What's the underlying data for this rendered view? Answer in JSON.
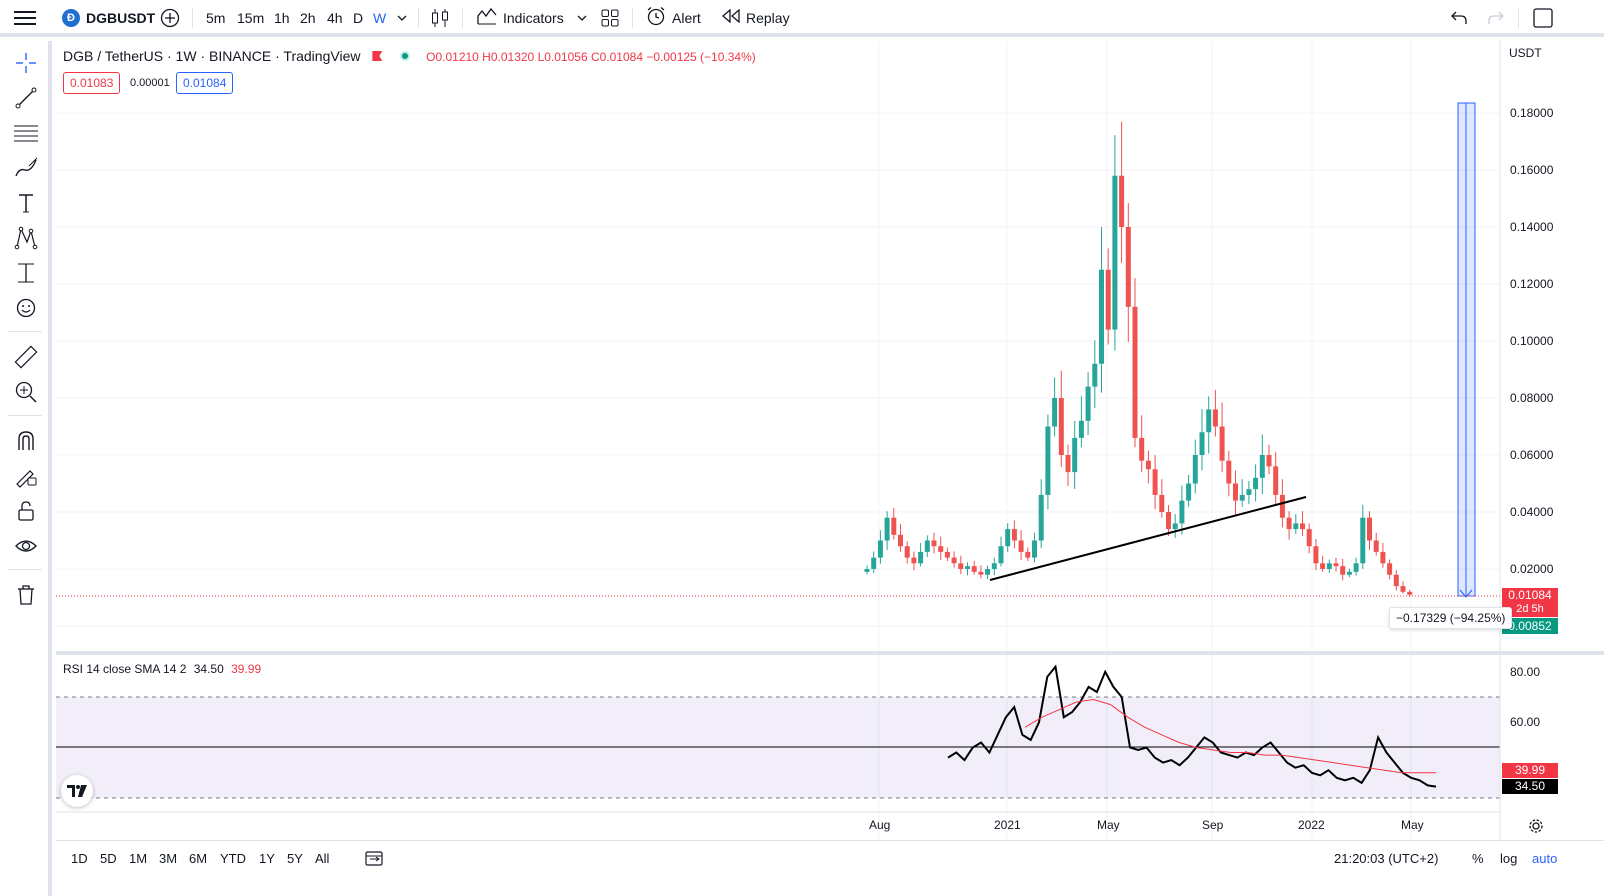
{
  "toolbar": {
    "symbol": "DGBUSDT",
    "timeframes": [
      "5m",
      "15m",
      "1h",
      "2h",
      "4h",
      "D",
      "W"
    ],
    "active_timeframe": "W",
    "indicators_label": "Indicators",
    "alert_label": "Alert",
    "replay_label": "Replay"
  },
  "legend": {
    "title": "DGB / TetherUS · 1W · BINANCE · TradingView",
    "ohlc": "O0.01210 H0.01320 L0.01056 C0.01084 −0.00125 (−10.34%)",
    "bid": "0.01083",
    "spread": "0.00001",
    "ask": "0.01084"
  },
  "currency": "USDT",
  "price_axis": [
    "0.18000",
    "0.16000",
    "0.14000",
    "0.12000",
    "0.10000",
    "0.08000",
    "0.06000",
    "0.04000",
    "0.02000"
  ],
  "price_tags": {
    "last": "0.01084",
    "countdown": "2d 5h",
    "low": "0.00852",
    "measure": "−0.17329 (−94.25%)"
  },
  "rsi": {
    "legend_name": "RSI 14 close SMA 14 2",
    "rsi_value": "34.50",
    "sma_value": "39.99",
    "axis": [
      "80.00",
      "60.00"
    ]
  },
  "time_axis": [
    "Aug",
    "2021",
    "May",
    "Sep",
    "2022",
    "May"
  ],
  "bottom": {
    "ranges": [
      "1D",
      "5D",
      "1M",
      "3M",
      "6M",
      "YTD",
      "1Y",
      "5Y",
      "All"
    ],
    "clock": "21:20:03 (UTC+2)",
    "percent": "%",
    "log": "log",
    "auto": "auto"
  },
  "colors": {
    "up": "#26a69a",
    "down": "#ef5350",
    "accent": "#2962ff",
    "rsi_band": "#7e57c2"
  },
  "chart_data": {
    "type": "candlestick",
    "timeframe": "1W",
    "ylim": [
      0.0,
      0.19
    ],
    "closes_approx": [
      0.02,
      0.024,
      0.03,
      0.038,
      0.032,
      0.028,
      0.024,
      0.022,
      0.026,
      0.03,
      0.028,
      0.026,
      0.024,
      0.022,
      0.02,
      0.021,
      0.019,
      0.018,
      0.02,
      0.022,
      0.028,
      0.034,
      0.03,
      0.026,
      0.024,
      0.03,
      0.046,
      0.07,
      0.08,
      0.06,
      0.054,
      0.066,
      0.072,
      0.084,
      0.092,
      0.125,
      0.104,
      0.158,
      0.14,
      0.112,
      0.066,
      0.058,
      0.055,
      0.046,
      0.04,
      0.034,
      0.036,
      0.044,
      0.05,
      0.06,
      0.068,
      0.076,
      0.07,
      0.058,
      0.05,
      0.044,
      0.046,
      0.048,
      0.052,
      0.06,
      0.056,
      0.046,
      0.038,
      0.034,
      0.036,
      0.034,
      0.028,
      0.022,
      0.02,
      0.022,
      0.021,
      0.018,
      0.019,
      0.022,
      0.038,
      0.03,
      0.026,
      0.022,
      0.018,
      0.014,
      0.012,
      0.011
    ],
    "rsi_series_approx": [
      46,
      48,
      45,
      50,
      52,
      48,
      55,
      62,
      66,
      55,
      53,
      60,
      78,
      82,
      62,
      64,
      68,
      74,
      72,
      80,
      74,
      70,
      50,
      49,
      50,
      46,
      44,
      45,
      43,
      46,
      50,
      54,
      52,
      48,
      47,
      46,
      48,
      47,
      50,
      52,
      48,
      44,
      42,
      43,
      40,
      39,
      41,
      38,
      37,
      38,
      36,
      41,
      54,
      48,
      44,
      40,
      38,
      37,
      35,
      34.5
    ],
    "rsi_sma_series_approx": [
      58,
      62,
      65,
      68,
      69,
      67,
      62,
      58,
      55,
      52,
      50,
      49,
      48,
      48,
      47,
      47,
      46,
      45,
      44,
      43,
      42,
      41,
      40,
      40,
      39.99
    ],
    "trendline": "ascending support line under 2021 lows, broken in Dec 2021"
  }
}
